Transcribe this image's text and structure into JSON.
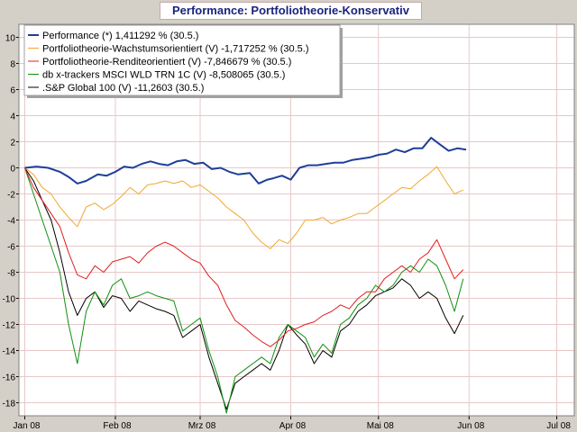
{
  "chart_data": {
    "type": "line",
    "title": "Performance: Portfoliotheorie-Konservativ",
    "xlabel": "",
    "ylabel": "",
    "ylim": [
      -19,
      11
    ],
    "yticks": [
      10,
      8,
      6,
      4,
      2,
      0,
      -2,
      -4,
      -6,
      -8,
      -10,
      -12,
      -14,
      -16,
      -18
    ],
    "x_labels": [
      "Jan 08",
      "Feb 08",
      "Mrz 08",
      "Apr 08",
      "Mai 08",
      "Jun 08",
      "Jul 08"
    ],
    "x_label_days": [
      0,
      31,
      60,
      91,
      121,
      152,
      182
    ],
    "xlim_days": [
      -2,
      188
    ],
    "grid": true,
    "legend_position": "top-left",
    "series": [
      {
        "name": "Performance (*) 1,411292 % (30.5.)",
        "color": "#1f3f99",
        "days": [
          0,
          4,
          8,
          12,
          15,
          18,
          21,
          25,
          28,
          31,
          34,
          37,
          40,
          43,
          46,
          49,
          52,
          55,
          58,
          61,
          64,
          67,
          70,
          73,
          77,
          80,
          83,
          85,
          88,
          91,
          94,
          97,
          100,
          103,
          106,
          109,
          112,
          115,
          118,
          121,
          124,
          127,
          130,
          133,
          136,
          139,
          142,
          145,
          148,
          151
        ],
        "values": [
          0.0,
          0.1,
          0.0,
          -0.3,
          -0.7,
          -1.2,
          -1.0,
          -0.5,
          -0.6,
          -0.3,
          0.1,
          0.0,
          0.3,
          0.5,
          0.3,
          0.2,
          0.5,
          0.6,
          0.3,
          0.4,
          -0.1,
          0.0,
          -0.3,
          -0.5,
          -0.4,
          -1.2,
          -0.9,
          -0.8,
          -0.6,
          -0.9,
          0.0,
          0.2,
          0.2,
          0.3,
          0.4,
          0.4,
          0.6,
          0.7,
          0.8,
          1.0,
          1.1,
          1.4,
          1.2,
          1.5,
          1.5,
          2.3,
          1.8,
          1.3,
          1.5,
          1.4
        ]
      },
      {
        "name": "Portfoliotheorie-Wachstumsorientiert (V) -1,717252 % (30.5.)",
        "color": "#f0a830",
        "days": [
          0,
          3,
          6,
          9,
          12,
          15,
          18,
          21,
          24,
          27,
          30,
          33,
          36,
          39,
          42,
          45,
          48,
          51,
          54,
          57,
          60,
          63,
          66,
          69,
          72,
          75,
          78,
          81,
          84,
          87,
          90,
          93,
          96,
          99,
          102,
          105,
          108,
          111,
          114,
          117,
          120,
          123,
          126,
          129,
          132,
          135,
          138,
          141,
          144,
          147,
          150
        ],
        "values": [
          0.0,
          -0.5,
          -1.5,
          -2.0,
          -3.0,
          -3.8,
          -4.5,
          -3.0,
          -2.7,
          -3.2,
          -2.8,
          -2.2,
          -1.5,
          -2.0,
          -1.3,
          -1.2,
          -1.0,
          -1.2,
          -1.0,
          -1.5,
          -1.3,
          -1.8,
          -2.3,
          -3.0,
          -3.5,
          -4.0,
          -5.0,
          -5.7,
          -6.2,
          -5.5,
          -5.8,
          -5.0,
          -4.0,
          -4.0,
          -3.8,
          -4.3,
          -4.0,
          -3.8,
          -3.5,
          -3.5,
          -3.0,
          -2.5,
          -2.0,
          -1.5,
          -1.6,
          -1.0,
          -0.5,
          0.1,
          -1.0,
          -2.0,
          -1.7
        ]
      },
      {
        "name": "Portfoliotheorie-Renditeorientiert (V) -7,846679 % (30.5.)",
        "color": "#e02020",
        "days": [
          0,
          3,
          6,
          9,
          12,
          15,
          18,
          21,
          24,
          27,
          30,
          33,
          36,
          39,
          42,
          45,
          48,
          51,
          54,
          57,
          60,
          63,
          66,
          69,
          72,
          75,
          78,
          81,
          84,
          87,
          90,
          93,
          96,
          99,
          102,
          105,
          108,
          111,
          114,
          117,
          120,
          123,
          126,
          129,
          132,
          135,
          138,
          141,
          144,
          147,
          150
        ],
        "values": [
          0.0,
          -1.5,
          -2.5,
          -3.5,
          -4.5,
          -6.5,
          -8.2,
          -8.5,
          -7.5,
          -8.0,
          -7.2,
          -7.0,
          -6.8,
          -7.3,
          -6.5,
          -6.0,
          -5.7,
          -6.0,
          -6.5,
          -7.0,
          -7.3,
          -8.3,
          -9.0,
          -10.5,
          -11.7,
          -12.2,
          -12.8,
          -13.3,
          -13.7,
          -13.2,
          -12.5,
          -12.3,
          -12.0,
          -11.8,
          -11.3,
          -11.0,
          -10.5,
          -10.8,
          -10.0,
          -9.5,
          -9.5,
          -8.5,
          -8.0,
          -7.5,
          -8.0,
          -7.0,
          -6.5,
          -5.5,
          -7.0,
          -8.5,
          -7.8
        ]
      },
      {
        "name": "db x-trackers MSCI WLD TRN 1C (V) -8,508065 (30.5.)",
        "color": "#109010",
        "days": [
          0,
          3,
          6,
          9,
          12,
          15,
          18,
          21,
          24,
          27,
          30,
          33,
          36,
          39,
          42,
          45,
          48,
          51,
          54,
          57,
          60,
          63,
          66,
          69,
          72,
          75,
          78,
          81,
          84,
          87,
          90,
          93,
          96,
          99,
          102,
          105,
          108,
          111,
          114,
          117,
          120,
          123,
          126,
          129,
          132,
          135,
          138,
          141,
          144,
          147,
          150
        ],
        "values": [
          0.0,
          -2.0,
          -4.0,
          -6.0,
          -8.0,
          -12.0,
          -15.0,
          -11.0,
          -9.5,
          -10.5,
          -9.0,
          -8.5,
          -10.0,
          -9.8,
          -9.5,
          -9.8,
          -10.0,
          -10.2,
          -12.5,
          -12.0,
          -11.5,
          -14.0,
          -16.0,
          -18.8,
          -16.0,
          -15.5,
          -15.0,
          -14.5,
          -15.0,
          -13.0,
          -12.0,
          -12.5,
          -13.0,
          -14.5,
          -13.5,
          -14.2,
          -12.0,
          -11.5,
          -10.5,
          -10.0,
          -9.0,
          -9.5,
          -9.0,
          -8.0,
          -7.5,
          -8.0,
          -7.0,
          -7.5,
          -9.0,
          -11.0,
          -8.5
        ]
      },
      {
        "name": ".S&P Global 100 (V) -11,2603 (30.5.)",
        "color": "#000000",
        "days": [
          0,
          3,
          6,
          9,
          12,
          15,
          18,
          21,
          24,
          27,
          30,
          33,
          36,
          39,
          42,
          45,
          48,
          51,
          54,
          57,
          60,
          63,
          66,
          69,
          72,
          75,
          78,
          81,
          84,
          87,
          90,
          93,
          96,
          99,
          102,
          105,
          108,
          111,
          114,
          117,
          120,
          123,
          126,
          129,
          132,
          135,
          138,
          141,
          144,
          147,
          150
        ],
        "values": [
          0.0,
          -1.0,
          -2.5,
          -4.0,
          -6.5,
          -9.5,
          -11.3,
          -10.0,
          -9.5,
          -10.7,
          -9.8,
          -10.0,
          -11.0,
          -10.2,
          -10.5,
          -10.8,
          -11.0,
          -11.3,
          -13.0,
          -12.5,
          -12.0,
          -14.5,
          -16.5,
          -18.5,
          -16.5,
          -16.0,
          -15.5,
          -15.0,
          -15.5,
          -14.0,
          -12.0,
          -12.8,
          -13.5,
          -15.0,
          -14.0,
          -14.5,
          -12.5,
          -12.0,
          -11.0,
          -10.5,
          -9.8,
          -9.5,
          -9.2,
          -8.5,
          -9.0,
          -10.0,
          -9.5,
          -10.0,
          -11.5,
          -12.7,
          -11.3
        ]
      }
    ]
  }
}
